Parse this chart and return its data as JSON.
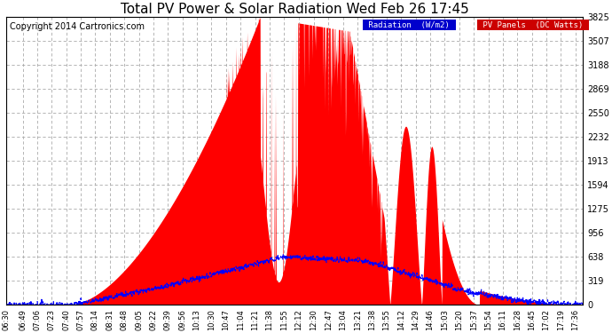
{
  "title": "Total PV Power & Solar Radiation Wed Feb 26 17:45",
  "copyright": "Copyright 2014 Cartronics.com",
  "y_ticks": [
    0.0,
    318.8,
    637.6,
    956.3,
    1275.1,
    1593.9,
    1912.7,
    2231.5,
    2550.3,
    2869.0,
    3187.8,
    3506.6,
    3825.4
  ],
  "y_max": 3825.4,
  "x_labels": [
    "06:30",
    "06:49",
    "07:06",
    "07:23",
    "07:40",
    "07:57",
    "08:14",
    "08:31",
    "08:48",
    "09:05",
    "09:22",
    "09:39",
    "09:56",
    "10:13",
    "10:30",
    "10:47",
    "11:04",
    "11:21",
    "11:38",
    "11:55",
    "12:12",
    "12:30",
    "12:47",
    "13:04",
    "13:21",
    "13:38",
    "13:55",
    "14:12",
    "14:29",
    "14:46",
    "15:03",
    "15:20",
    "15:37",
    "15:54",
    "16:11",
    "16:28",
    "16:45",
    "17:02",
    "17:19",
    "17:36"
  ],
  "bg_color": "#ffffff",
  "grid_color": "#cccccc",
  "fill_color": "#ff0000",
  "line_color": "#0000ff",
  "legend_radiation_bg": "#0000cc",
  "legend_pv_bg": "#cc0000",
  "title_fontsize": 11,
  "copyright_fontsize": 7
}
